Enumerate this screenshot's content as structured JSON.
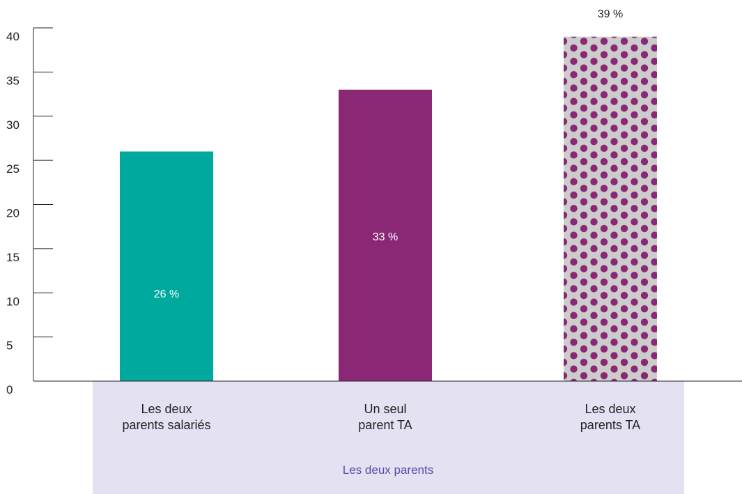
{
  "chart_data": {
    "type": "bar",
    "categories": [
      "Les deux parents salariés",
      "Un seul parent TA",
      "Les deux parents TA"
    ],
    "category_lines": [
      [
        "Les deux",
        "parents salariés"
      ],
      [
        "Un seul",
        "parent TA"
      ],
      [
        "Les deux",
        "parents TA"
      ]
    ],
    "values": [
      26,
      33,
      39
    ],
    "data_labels": [
      "26 %",
      "33 %",
      "39 %"
    ],
    "bar_styles": [
      "solid",
      "solid",
      "dotted"
    ],
    "colors": [
      "#00a99d",
      "#8b2876",
      "#8b2876"
    ],
    "pattern_background": "#cccccc",
    "group_label": "Les deux parents",
    "group_band_color": "#e4e1f2",
    "group_label_color": "#5c4aa8",
    "ylim": [
      0,
      40
    ],
    "yticks": [
      "0",
      "5",
      "10",
      "15",
      "20",
      "25",
      "30",
      "35",
      "40"
    ],
    "title": "",
    "xlabel": "",
    "ylabel": "",
    "grid": false
  }
}
